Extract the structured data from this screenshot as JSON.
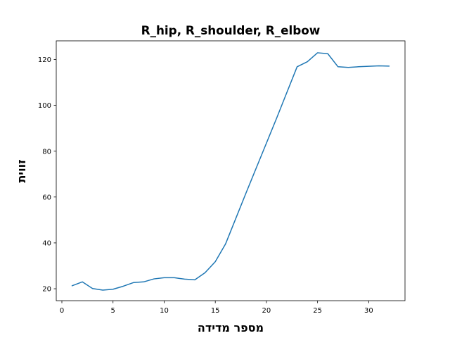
{
  "chart_data": {
    "type": "line",
    "title": "R_hip, R_shoulder, R_elbow",
    "xlabel": "מספר מדידה",
    "ylabel": "זווית",
    "xlim": [
      -0.55,
      33.55
    ],
    "ylim": [
      14.8,
      128.1
    ],
    "xticks": [
      0,
      5,
      10,
      15,
      20,
      25,
      30
    ],
    "yticks": [
      20,
      40,
      60,
      80,
      100,
      120
    ],
    "grid": false,
    "series": [
      {
        "name": "R_hip, R_shoulder, R_elbow",
        "color": "#1f77b4",
        "x": [
          1,
          2,
          3,
          4,
          5,
          6,
          7,
          8,
          9,
          10,
          11,
          12,
          13,
          14,
          15,
          16,
          17,
          18,
          19,
          20,
          21,
          22,
          23,
          24,
          25,
          26,
          27,
          28,
          29,
          30,
          31,
          32
        ],
        "y": [
          21.3,
          23.0,
          20.1,
          19.4,
          19.8,
          21.1,
          22.7,
          23.0,
          24.3,
          24.8,
          24.8,
          24.2,
          23.9,
          27.0,
          31.8,
          39.5,
          50.6,
          61.7,
          72.6,
          83.5,
          94.4,
          105.6,
          116.8,
          119.0,
          122.9,
          122.5,
          116.8,
          116.5,
          116.8,
          117.0,
          117.2,
          117.1
        ]
      }
    ]
  }
}
